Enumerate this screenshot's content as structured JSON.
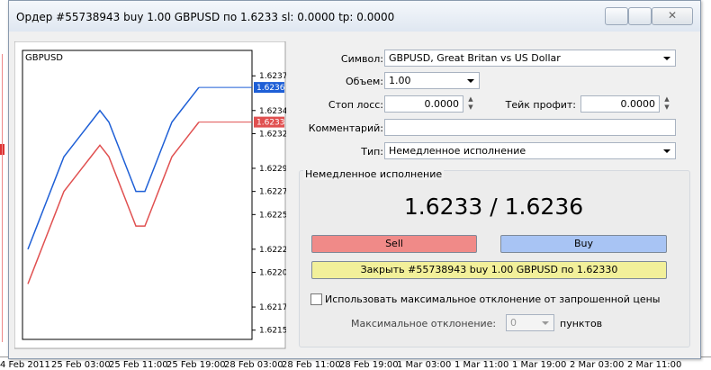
{
  "window": {
    "title": "Ордер #55738943 buy 1.00 GBPUSD по 1.6233 sl: 0.0000 tp: 0.0000"
  },
  "tick_chart": {
    "symbol": "GBPUSD",
    "ylim": [
      1.62142,
      1.62392
    ],
    "yticks": [
      1.6237,
      1.6234,
      1.6232,
      1.6229,
      1.6227,
      1.6225,
      1.6222,
      {
        "value": 1.622,
        "label": "1.6220"
      },
      1.6217,
      1.6215
    ],
    "ask": {
      "color": "#1e5fd6",
      "label": "1.6236",
      "values": [
        1.6222,
        1.6224,
        1.6226,
        1.6228,
        1.623,
        1.6231,
        1.6232,
        1.6233,
        1.6234,
        1.6233,
        1.6231,
        1.6229,
        1.6227,
        1.6227,
        1.6229,
        1.6231,
        1.6233,
        1.6234,
        1.6235,
        1.6236
      ]
    },
    "bid": {
      "color": "#e05050",
      "label": "1.6233",
      "values": [
        1.6219,
        1.6221,
        1.6223,
        1.6225,
        1.6227,
        1.6228,
        1.6229,
        1.623,
        1.6231,
        1.623,
        1.6228,
        1.6226,
        1.6224,
        1.6224,
        1.6226,
        1.6228,
        1.623,
        1.6231,
        1.6232,
        1.6233
      ]
    }
  },
  "form": {
    "symbol_label": "Символ:",
    "symbol": "GBPUSD, Great Britan vs US Dollar",
    "volume_label": "Объем:",
    "volume": "1.00",
    "sl_label": "Стоп лосс:",
    "sl": "0.0000",
    "tp_label": "Тейк профит:",
    "tp": "0.0000",
    "comment_label": "Комментарий:",
    "type_label": "Тип:",
    "type": "Немедленное исполнение"
  },
  "execution": {
    "group_title": "Немедленное исполнение",
    "price": "1.6233 / 1.6236",
    "sell": "Sell",
    "buy": "Buy",
    "close": "Закрыть #55738943 buy 1.00 GBPUSD по 1.62330",
    "deviation_check": "Использовать максимальное отклонение от запрошенной цены",
    "deviation_label": "Максимальное отклонение:",
    "deviation": "0",
    "deviation_unit": "пунктов"
  },
  "timeline": [
    "4 Feb 2011",
    "25 Feb 03:00",
    "25 Feb 11:00",
    "25 Feb 19:00",
    "28 Feb 03:00",
    "28 Feb 11:00",
    "28 Feb 19:00",
    "1 Mar 03:00",
    "1 Mar 11:00",
    "1 Mar 19:00",
    "2 Mar 03:00",
    "2 Mar 11:00"
  ]
}
